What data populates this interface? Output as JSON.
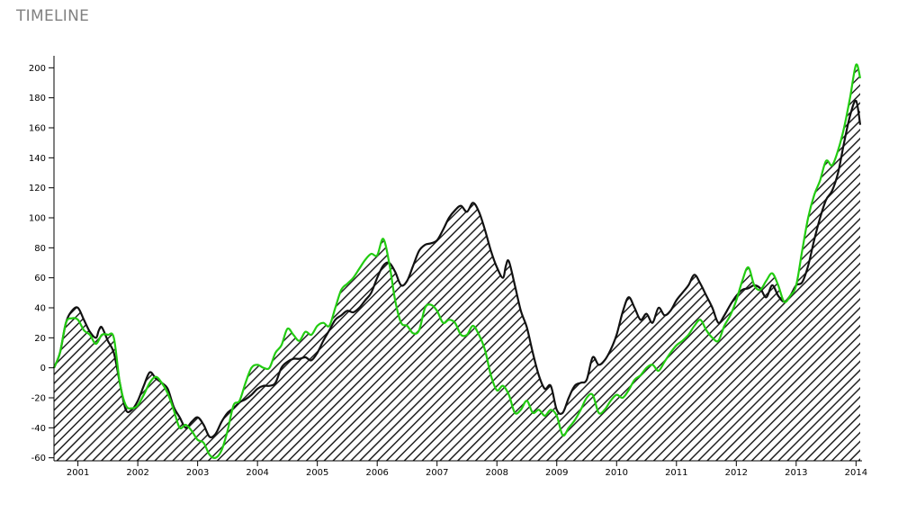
{
  "page": {
    "title": "TIMELINE"
  },
  "chart_data": {
    "type": "area",
    "title": "",
    "xlabel": "",
    "ylabel": "",
    "xlim": [
      2000.6,
      2014.1
    ],
    "ylim": [
      -62,
      208
    ],
    "yticks": [
      -60,
      -40,
      -20,
      0,
      20,
      40,
      60,
      80,
      100,
      120,
      140,
      160,
      180,
      200
    ],
    "ytick_labels": [
      "-60",
      "-40",
      "-20",
      "0",
      "20",
      "40",
      "60",
      "80",
      "100",
      "120",
      "140",
      "160",
      "180",
      "200"
    ],
    "xticks": [
      2001,
      2002,
      2003,
      2004,
      2005,
      2006,
      2007,
      2008,
      2009,
      2010,
      2011,
      2012,
      2013,
      2014
    ],
    "xtick_labels": [
      "2001",
      "2002",
      "2003",
      "2004",
      "2005",
      "2006",
      "2007",
      "2008",
      "2009",
      "2010",
      "2011",
      "2012",
      "2013",
      "2014"
    ],
    "grid": false,
    "fill": "diagonal-hatch",
    "colors": {
      "black_series": "#111111",
      "green_series": "#22cc11",
      "hatch": "#222222"
    },
    "series": [
      {
        "key": "black",
        "color": "#111111",
        "points": [
          [
            2000.6,
            0
          ],
          [
            2000.7,
            10
          ],
          [
            2000.8,
            30
          ],
          [
            2000.9,
            38
          ],
          [
            2001.0,
            40
          ],
          [
            2001.1,
            32
          ],
          [
            2001.2,
            24
          ],
          [
            2001.3,
            20
          ],
          [
            2001.35,
            25
          ],
          [
            2001.4,
            27
          ],
          [
            2001.5,
            18
          ],
          [
            2001.6,
            10
          ],
          [
            2001.7,
            -10
          ],
          [
            2001.8,
            -28
          ],
          [
            2001.9,
            -28
          ],
          [
            2002.0,
            -22
          ],
          [
            2002.1,
            -12
          ],
          [
            2002.2,
            -3
          ],
          [
            2002.3,
            -7
          ],
          [
            2002.4,
            -10
          ],
          [
            2002.5,
            -14
          ],
          [
            2002.6,
            -26
          ],
          [
            2002.7,
            -33
          ],
          [
            2002.8,
            -40
          ],
          [
            2002.9,
            -36
          ],
          [
            2003.0,
            -33
          ],
          [
            2003.1,
            -38
          ],
          [
            2003.2,
            -46
          ],
          [
            2003.3,
            -44
          ],
          [
            2003.4,
            -36
          ],
          [
            2003.5,
            -30
          ],
          [
            2003.6,
            -27
          ],
          [
            2003.7,
            -23
          ],
          [
            2003.8,
            -21
          ],
          [
            2003.9,
            -18
          ],
          [
            2004.0,
            -14
          ],
          [
            2004.1,
            -12
          ],
          [
            2004.2,
            -12
          ],
          [
            2004.3,
            -10
          ],
          [
            2004.4,
            0
          ],
          [
            2004.5,
            4
          ],
          [
            2004.6,
            6
          ],
          [
            2004.7,
            6
          ],
          [
            2004.8,
            7
          ],
          [
            2004.9,
            5
          ],
          [
            2005.0,
            10
          ],
          [
            2005.1,
            18
          ],
          [
            2005.2,
            25
          ],
          [
            2005.3,
            32
          ],
          [
            2005.4,
            35
          ],
          [
            2005.5,
            38
          ],
          [
            2005.6,
            37
          ],
          [
            2005.7,
            40
          ],
          [
            2005.8,
            45
          ],
          [
            2005.9,
            50
          ],
          [
            2006.0,
            60
          ],
          [
            2006.1,
            68
          ],
          [
            2006.2,
            70
          ],
          [
            2006.3,
            64
          ],
          [
            2006.4,
            55
          ],
          [
            2006.5,
            58
          ],
          [
            2006.6,
            68
          ],
          [
            2006.7,
            78
          ],
          [
            2006.8,
            82
          ],
          [
            2006.9,
            83
          ],
          [
            2007.0,
            85
          ],
          [
            2007.1,
            92
          ],
          [
            2007.2,
            100
          ],
          [
            2007.3,
            105
          ],
          [
            2007.4,
            108
          ],
          [
            2007.5,
            104
          ],
          [
            2007.6,
            110
          ],
          [
            2007.7,
            104
          ],
          [
            2007.8,
            92
          ],
          [
            2007.9,
            78
          ],
          [
            2008.0,
            67
          ],
          [
            2008.1,
            60
          ],
          [
            2008.15,
            68
          ],
          [
            2008.2,
            71
          ],
          [
            2008.3,
            55
          ],
          [
            2008.4,
            38
          ],
          [
            2008.5,
            27
          ],
          [
            2008.6,
            10
          ],
          [
            2008.7,
            -5
          ],
          [
            2008.8,
            -14
          ],
          [
            2008.9,
            -12
          ],
          [
            2009.0,
            -28
          ],
          [
            2009.1,
            -30
          ],
          [
            2009.2,
            -20
          ],
          [
            2009.3,
            -12
          ],
          [
            2009.4,
            -10
          ],
          [
            2009.5,
            -8
          ],
          [
            2009.6,
            7
          ],
          [
            2009.7,
            2
          ],
          [
            2009.8,
            5
          ],
          [
            2009.9,
            12
          ],
          [
            2010.0,
            22
          ],
          [
            2010.1,
            37
          ],
          [
            2010.2,
            47
          ],
          [
            2010.3,
            40
          ],
          [
            2010.4,
            32
          ],
          [
            2010.5,
            36
          ],
          [
            2010.6,
            30
          ],
          [
            2010.7,
            40
          ],
          [
            2010.8,
            35
          ],
          [
            2010.9,
            38
          ],
          [
            2011.0,
            45
          ],
          [
            2011.1,
            50
          ],
          [
            2011.2,
            55
          ],
          [
            2011.3,
            62
          ],
          [
            2011.4,
            56
          ],
          [
            2011.5,
            48
          ],
          [
            2011.6,
            40
          ],
          [
            2011.7,
            30
          ],
          [
            2011.8,
            35
          ],
          [
            2011.9,
            42
          ],
          [
            2012.0,
            48
          ],
          [
            2012.1,
            52
          ],
          [
            2012.2,
            53
          ],
          [
            2012.3,
            55
          ],
          [
            2012.4,
            53
          ],
          [
            2012.5,
            47
          ],
          [
            2012.6,
            55
          ],
          [
            2012.7,
            48
          ],
          [
            2012.8,
            44
          ],
          [
            2012.9,
            48
          ],
          [
            2013.0,
            55
          ],
          [
            2013.1,
            57
          ],
          [
            2013.2,
            68
          ],
          [
            2013.3,
            85
          ],
          [
            2013.4,
            100
          ],
          [
            2013.5,
            112
          ],
          [
            2013.6,
            118
          ],
          [
            2013.7,
            130
          ],
          [
            2013.8,
            150
          ],
          [
            2013.9,
            168
          ],
          [
            2014.0,
            178
          ],
          [
            2014.07,
            162
          ]
        ]
      },
      {
        "key": "green",
        "color": "#22cc11",
        "points": [
          [
            2000.6,
            0
          ],
          [
            2000.7,
            10
          ],
          [
            2000.8,
            30
          ],
          [
            2000.9,
            33
          ],
          [
            2001.0,
            32
          ],
          [
            2001.1,
            25
          ],
          [
            2001.2,
            22
          ],
          [
            2001.3,
            16
          ],
          [
            2001.4,
            22
          ],
          [
            2001.5,
            22
          ],
          [
            2001.6,
            20
          ],
          [
            2001.7,
            -10
          ],
          [
            2001.8,
            -25
          ],
          [
            2001.9,
            -27
          ],
          [
            2002.0,
            -25
          ],
          [
            2002.1,
            -18
          ],
          [
            2002.2,
            -10
          ],
          [
            2002.3,
            -6
          ],
          [
            2002.4,
            -10
          ],
          [
            2002.5,
            -17
          ],
          [
            2002.6,
            -28
          ],
          [
            2002.7,
            -40
          ],
          [
            2002.8,
            -38
          ],
          [
            2002.9,
            -42
          ],
          [
            2003.0,
            -48
          ],
          [
            2003.1,
            -50
          ],
          [
            2003.2,
            -58
          ],
          [
            2003.3,
            -60
          ],
          [
            2003.4,
            -55
          ],
          [
            2003.5,
            -42
          ],
          [
            2003.6,
            -25
          ],
          [
            2003.7,
            -22
          ],
          [
            2003.8,
            -10
          ],
          [
            2003.9,
            0
          ],
          [
            2004.0,
            2
          ],
          [
            2004.1,
            0
          ],
          [
            2004.2,
            0
          ],
          [
            2004.3,
            10
          ],
          [
            2004.4,
            15
          ],
          [
            2004.5,
            26
          ],
          [
            2004.6,
            22
          ],
          [
            2004.7,
            18
          ],
          [
            2004.8,
            24
          ],
          [
            2004.9,
            22
          ],
          [
            2005.0,
            28
          ],
          [
            2005.1,
            30
          ],
          [
            2005.2,
            28
          ],
          [
            2005.3,
            40
          ],
          [
            2005.4,
            52
          ],
          [
            2005.5,
            56
          ],
          [
            2005.6,
            60
          ],
          [
            2005.7,
            66
          ],
          [
            2005.8,
            72
          ],
          [
            2005.9,
            76
          ],
          [
            2006.0,
            75
          ],
          [
            2006.1,
            86
          ],
          [
            2006.2,
            70
          ],
          [
            2006.3,
            45
          ],
          [
            2006.4,
            30
          ],
          [
            2006.5,
            28
          ],
          [
            2006.6,
            23
          ],
          [
            2006.7,
            25
          ],
          [
            2006.8,
            40
          ],
          [
            2006.9,
            42
          ],
          [
            2007.0,
            38
          ],
          [
            2007.1,
            30
          ],
          [
            2007.2,
            32
          ],
          [
            2007.3,
            30
          ],
          [
            2007.4,
            22
          ],
          [
            2007.5,
            22
          ],
          [
            2007.6,
            28
          ],
          [
            2007.7,
            22
          ],
          [
            2007.8,
            12
          ],
          [
            2007.9,
            -5
          ],
          [
            2008.0,
            -15
          ],
          [
            2008.1,
            -12
          ],
          [
            2008.2,
            -18
          ],
          [
            2008.3,
            -30
          ],
          [
            2008.4,
            -28
          ],
          [
            2008.5,
            -22
          ],
          [
            2008.6,
            -30
          ],
          [
            2008.7,
            -28
          ],
          [
            2008.8,
            -32
          ],
          [
            2008.9,
            -28
          ],
          [
            2009.0,
            -32
          ],
          [
            2009.1,
            -45
          ],
          [
            2009.2,
            -40
          ],
          [
            2009.3,
            -35
          ],
          [
            2009.4,
            -28
          ],
          [
            2009.5,
            -20
          ],
          [
            2009.6,
            -18
          ],
          [
            2009.7,
            -30
          ],
          [
            2009.8,
            -28
          ],
          [
            2009.9,
            -22
          ],
          [
            2010.0,
            -18
          ],
          [
            2010.1,
            -20
          ],
          [
            2010.2,
            -15
          ],
          [
            2010.3,
            -8
          ],
          [
            2010.4,
            -5
          ],
          [
            2010.5,
            0
          ],
          [
            2010.6,
            2
          ],
          [
            2010.7,
            -2
          ],
          [
            2010.8,
            4
          ],
          [
            2010.9,
            10
          ],
          [
            2011.0,
            15
          ],
          [
            2011.1,
            18
          ],
          [
            2011.2,
            22
          ],
          [
            2011.3,
            28
          ],
          [
            2011.4,
            32
          ],
          [
            2011.5,
            25
          ],
          [
            2011.6,
            20
          ],
          [
            2011.7,
            18
          ],
          [
            2011.8,
            28
          ],
          [
            2011.9,
            35
          ],
          [
            2012.0,
            45
          ],
          [
            2012.1,
            58
          ],
          [
            2012.2,
            67
          ],
          [
            2012.3,
            55
          ],
          [
            2012.4,
            52
          ],
          [
            2012.5,
            58
          ],
          [
            2012.6,
            63
          ],
          [
            2012.7,
            55
          ],
          [
            2012.8,
            44
          ],
          [
            2012.9,
            48
          ],
          [
            2013.0,
            55
          ],
          [
            2013.1,
            78
          ],
          [
            2013.2,
            100
          ],
          [
            2013.3,
            115
          ],
          [
            2013.4,
            125
          ],
          [
            2013.5,
            138
          ],
          [
            2013.6,
            135
          ],
          [
            2013.7,
            145
          ],
          [
            2013.8,
            160
          ],
          [
            2013.9,
            180
          ],
          [
            2014.0,
            202
          ],
          [
            2014.07,
            193
          ]
        ]
      }
    ]
  }
}
